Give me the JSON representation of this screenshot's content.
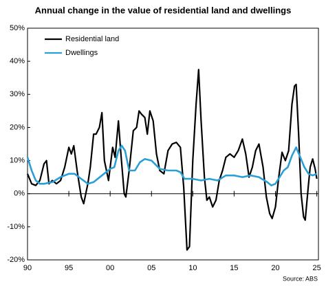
{
  "chart_data": {
    "type": "line",
    "title": "Annual change in the value of residential land and dwellings",
    "source": "Source: ABS",
    "legend": "upper left",
    "xlim": [
      1990,
      2025.2
    ],
    "xticks": [
      {
        "value": 1990,
        "label": "90"
      },
      {
        "value": 1995,
        "label": "95"
      },
      {
        "value": 2000,
        "label": "00"
      },
      {
        "value": 2005,
        "label": "05"
      },
      {
        "value": 2010,
        "label": "10"
      },
      {
        "value": 2015,
        "label": "15"
      },
      {
        "value": 2020,
        "label": "20"
      },
      {
        "value": 2025,
        "label": "25"
      }
    ],
    "ylim": [
      -20,
      50
    ],
    "yticks": [
      {
        "value": -20,
        "label": "-20%"
      },
      {
        "value": -10,
        "label": "-10%"
      },
      {
        "value": 0,
        "label": "0%"
      },
      {
        "value": 10,
        "label": "10%"
      },
      {
        "value": 20,
        "label": "20%"
      },
      {
        "value": 30,
        "label": "30%"
      },
      {
        "value": 40,
        "label": "40%"
      },
      {
        "value": 50,
        "label": "50%"
      }
    ],
    "series": [
      {
        "name": "Residential land",
        "color": "#000000",
        "x": [
          1990,
          1990.5,
          1991,
          1991.5,
          1992,
          1992.3,
          1992.6,
          1993,
          1993.5,
          1994,
          1994.5,
          1995,
          1995.3,
          1995.6,
          1996,
          1996.5,
          1996.8,
          1997.3,
          1997.6,
          1998,
          1998.3,
          1998.7,
          1999,
          1999.3,
          1999.8,
          2000.3,
          2000.6,
          2001,
          2001.3,
          2001.7,
          2001.9,
          2002.3,
          2002.8,
          2003.2,
          2003.5,
          2003.8,
          2004.2,
          2004.5,
          2004.8,
          2005.2,
          2005.6,
          2006,
          2006.5,
          2007,
          2007.5,
          2008,
          2008.5,
          2008.9,
          2009.3,
          2009.6,
          2010,
          2010.4,
          2010.7,
          2011,
          2011.4,
          2011.7,
          2012,
          2012.4,
          2012.8,
          2013.2,
          2013.6,
          2014,
          2014.5,
          2015,
          2015.5,
          2016,
          2016.4,
          2016.8,
          2017.2,
          2017.6,
          2018,
          2018.5,
          2018.9,
          2019.3,
          2019.6,
          2020,
          2020.4,
          2020.8,
          2021.2,
          2021.6,
          2022,
          2022.3,
          2022.5,
          2022.8,
          2023.1,
          2023.4,
          2023.6,
          2024,
          2024.2,
          2024.5,
          2024.8,
          2025
        ],
        "values": [
          6,
          3,
          2.5,
          4,
          9,
          10,
          3,
          4,
          3,
          4,
          8,
          14,
          12,
          14.5,
          7,
          -1,
          -3,
          3,
          8,
          18,
          18,
          20,
          24.5,
          10,
          4,
          14,
          11,
          22,
          12,
          0,
          -1,
          7,
          19,
          20,
          25,
          24,
          23,
          18,
          25,
          22,
          12,
          7,
          6,
          13,
          15,
          15.5,
          14,
          2,
          -17,
          -16,
          10,
          27,
          37.5,
          22,
          5,
          -2,
          -1,
          -4,
          -2,
          4,
          7,
          11,
          12,
          11,
          13,
          16.5,
          12,
          5,
          8,
          13,
          15,
          8,
          -1,
          -6,
          -7.5,
          -4,
          5,
          12.5,
          10,
          13,
          27,
          32.5,
          33,
          18,
          0,
          -7,
          -8,
          3,
          8,
          10.5,
          7.5,
          4.5
        ]
      },
      {
        "name": "Dwellings",
        "color": "#2a9fd6",
        "x": [
          1990,
          1990.5,
          1991,
          1991.5,
          1992,
          1993,
          1994,
          1995,
          1995.7,
          1996.5,
          1997.3,
          1998,
          1999,
          2000,
          2000.5,
          2001,
          2001.4,
          2001.8,
          2002.3,
          2003,
          2003.6,
          2004.2,
          2005,
          2006,
          2007,
          2008,
          2008.5,
          2009,
          2010,
          2011,
          2012,
          2013,
          2014,
          2015,
          2016,
          2017,
          2018,
          2019,
          2019.5,
          2020,
          2021,
          2021.5,
          2022,
          2022.5,
          2023,
          2023.5,
          2024,
          2024.5,
          2025
        ],
        "values": [
          11,
          7,
          4,
          3,
          3,
          3.5,
          5,
          6,
          6,
          4.5,
          3,
          3.5,
          5.5,
          7.5,
          8,
          13,
          14.5,
          13,
          7,
          7,
          9.5,
          10.5,
          10,
          7.5,
          7,
          7,
          6.5,
          4.5,
          4.5,
          4,
          4.5,
          4,
          5.5,
          5.5,
          5,
          5.5,
          5,
          3.5,
          2.5,
          3,
          7,
          8,
          11.5,
          14,
          11,
          8,
          6,
          5.5,
          6
        ]
      }
    ]
  }
}
